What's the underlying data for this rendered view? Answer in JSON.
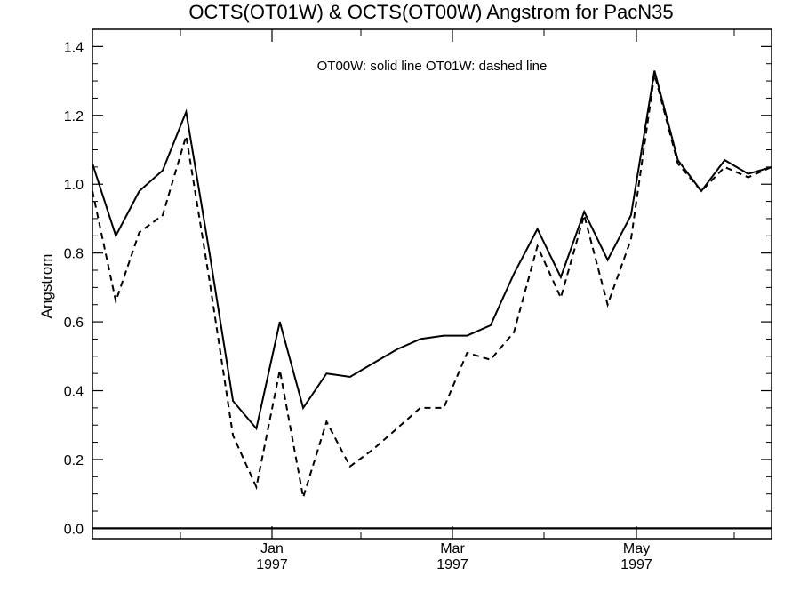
{
  "chart_data": {
    "type": "line",
    "title": "OCTS(OT01W) & OCTS(OT00W)  Angstrom for PacN35",
    "ylabel": "Angstrom",
    "xlabel": "",
    "legend_text": "OT00W: solid line   OT01W: dashed line",
    "ylim": [
      -0.03,
      1.45
    ],
    "y_ticks": [
      "0.0",
      "0.2",
      "0.4",
      "0.6",
      "0.8",
      "1.0",
      "1.2",
      "1.4"
    ],
    "x_ticks": [
      {
        "month": "Jan",
        "year": "1997"
      },
      {
        "month": "Mar",
        "year": "1997"
      },
      {
        "month": "May",
        "year": "1997"
      }
    ],
    "series": [
      {
        "name": "OT00W",
        "style": "solid",
        "values": [
          1.06,
          0.85,
          0.98,
          1.04,
          1.21,
          0.8,
          0.37,
          0.29,
          0.6,
          0.35,
          0.45,
          0.44,
          0.48,
          0.52,
          0.55,
          0.56,
          0.56,
          0.59,
          0.74,
          0.87,
          0.73,
          0.92,
          0.78,
          0.91,
          1.33,
          1.07,
          0.98,
          1.07,
          1.03,
          1.05
        ]
      },
      {
        "name": "OT01W",
        "style": "dashed",
        "values": [
          0.98,
          0.66,
          0.86,
          0.91,
          1.14,
          0.72,
          0.27,
          0.12,
          0.46,
          0.09,
          0.31,
          0.18,
          0.23,
          0.29,
          0.35,
          0.35,
          0.51,
          0.49,
          0.57,
          0.82,
          0.67,
          0.91,
          0.65,
          0.84,
          1.32,
          1.06,
          0.98,
          1.05,
          1.02,
          1.05
        ]
      }
    ]
  }
}
